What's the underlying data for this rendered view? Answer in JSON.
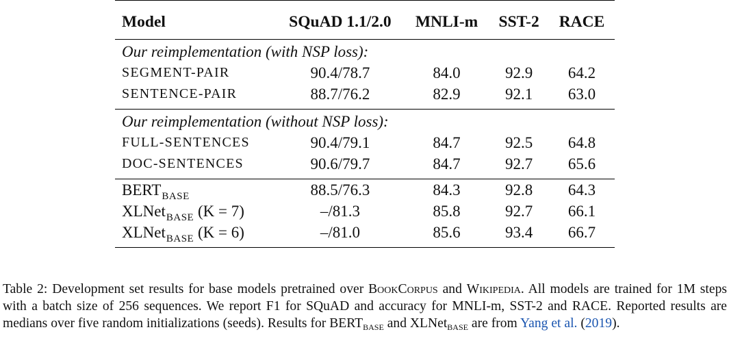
{
  "table": {
    "headers": [
      "Model",
      "SQuAD 1.1/2.0",
      "MNLI-m",
      "SST-2",
      "RACE"
    ],
    "groups": [
      {
        "label": "Our reimplementation (with NSP loss):",
        "rows": [
          {
            "model": "SEGMENT-PAIR",
            "squad": "90.4/78.7",
            "mnli": "84.0",
            "sst2": "92.9",
            "race": "64.2"
          },
          {
            "model": "SENTENCE-PAIR",
            "squad": "88.7/76.2",
            "mnli": "82.9",
            "sst2": "92.1",
            "race": "63.0"
          }
        ]
      },
      {
        "label": "Our reimplementation (without NSP loss):",
        "rows": [
          {
            "model": "FULL-SENTENCES",
            "squad": "90.4/79.1",
            "mnli": "84.7",
            "sst2": "92.5",
            "race": "64.8"
          },
          {
            "model": "DOC-SENTENCES",
            "squad": "90.6/79.7",
            "mnli": "84.7",
            "sst2": "92.7",
            "race": "65.6"
          }
        ]
      }
    ],
    "baselines": [
      {
        "model": "BERT",
        "sub": "BASE",
        "suffix": "",
        "squad": "88.5/76.3",
        "mnli": "84.3",
        "sst2": "92.8",
        "race": "64.3"
      },
      {
        "model": "XLNet",
        "sub": "BASE",
        "suffix": " (K = 7)",
        "squad": "–/81.3",
        "mnli": "85.8",
        "sst2": "92.7",
        "race": "66.1"
      },
      {
        "model": "XLNet",
        "sub": "BASE",
        "suffix": " (K = 6)",
        "squad": "–/81.0",
        "mnli": "85.6",
        "sst2": "93.4",
        "race": "66.7"
      }
    ]
  },
  "caption": {
    "p1": "Table 2: Development set results for base models pretrained over ",
    "bookcorpus": "BookCorpus",
    "and1": " and ",
    "wikipedia": "Wikipedia",
    "p2": ". All models are trained for 1M steps with a batch size of 256 sequences. We report F1 for SQuAD and accuracy for MNLI-m, SST-2 and RACE. Reported results are medians over five random initializations (seeds). Results for BERT",
    "sub1": "BASE",
    "and2": " and XLNet",
    "sub2": "BASE",
    "p3": " are from ",
    "cite_name": "Yang et al.",
    "cite_open": " (",
    "cite_year": "2019",
    "cite_close": ")."
  }
}
